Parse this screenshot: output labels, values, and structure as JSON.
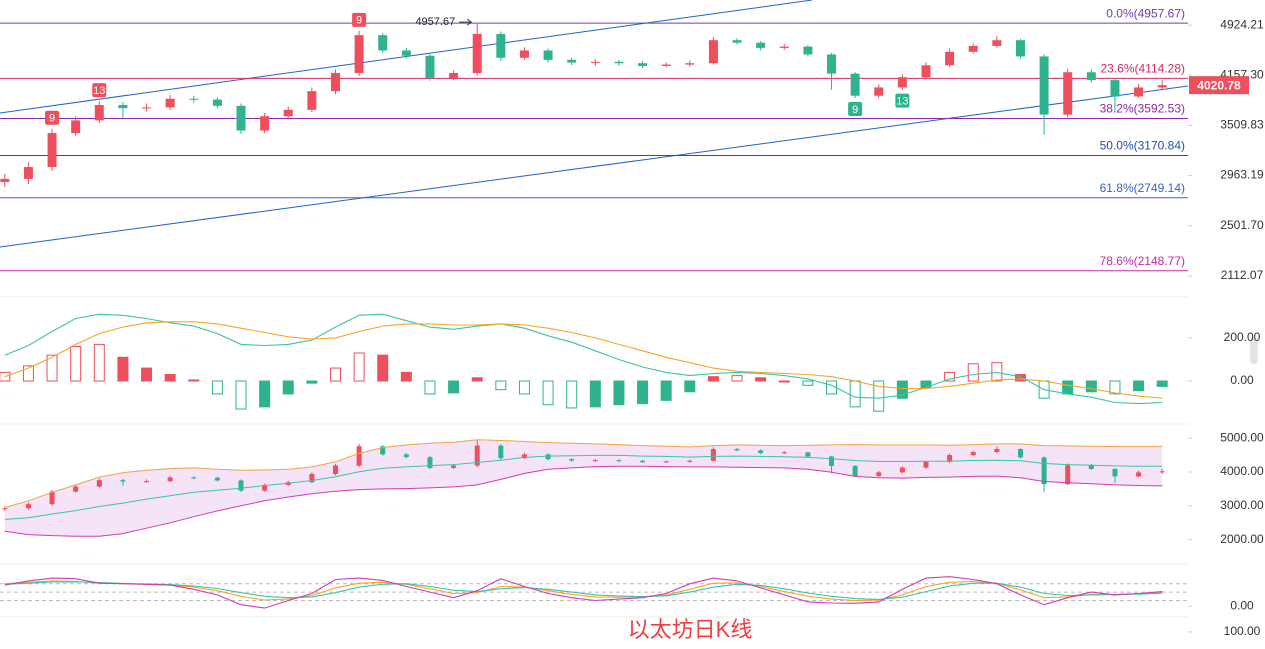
{
  "chart_data": [
    {
      "type": "candlestick",
      "log_scale": true,
      "ylim": [
        1980,
        5360
      ],
      "yticks": [
        4924.21,
        {
          "value": 4157.3,
          "label": "4157.30"
        },
        3509.83,
        2963.19,
        {
          "value": 2501.7,
          "label": "2501.70"
        },
        2112.07
      ],
      "up_color": "#ee4f5d",
      "down_color": "#2fb38e",
      "open": [
        2900,
        2930,
        3050,
        3420,
        3570,
        3760,
        3720,
        3730,
        3840,
        3830,
        3750,
        3450,
        3620,
        3700,
        3940,
        4190,
        4760,
        4520,
        4440,
        4120,
        4190,
        4780,
        4410,
        4520,
        4380,
        4340,
        4350,
        4330,
        4290,
        4310,
        4330,
        4680,
        4640,
        4560,
        4580,
        4460,
        4180,
        3880,
        3990,
        4130,
        4300,
        4500,
        4590,
        4680,
        4430,
        3640,
        4200,
        4090,
        3870,
        3990
      ],
      "high": [
        2980,
        3100,
        3470,
        3620,
        3810,
        3800,
        3780,
        3890,
        3880,
        3860,
        3780,
        3660,
        3740,
        3990,
        4240,
        4830,
        4790,
        4560,
        4470,
        4230,
        4957.67,
        4820,
        4570,
        4550,
        4410,
        4390,
        4380,
        4360,
        4340,
        4370,
        4730,
        4710,
        4670,
        4620,
        4600,
        4480,
        4200,
        4030,
        4170,
        4340,
        4550,
        4630,
        4750,
        4700,
        4460,
        4250,
        4240,
        4110,
        4040,
        4090
      ],
      "low": [
        2850,
        2880,
        3010,
        3390,
        3540,
        3600,
        3680,
        3700,
        3790,
        3720,
        3410,
        3420,
        3580,
        3670,
        3900,
        4150,
        4480,
        4400,
        4080,
        4090,
        4150,
        4360,
        4380,
        4340,
        4300,
        4290,
        4290,
        4260,
        4270,
        4280,
        4310,
        4610,
        4520,
        4530,
        4430,
        3960,
        3850,
        3850,
        3960,
        4100,
        4270,
        4470,
        4560,
        4400,
        3400,
        3610,
        4060,
        3680,
        3850,
        3950
      ],
      "close": [
        2930,
        3050,
        3420,
        3570,
        3760,
        3720,
        3730,
        3840,
        3830,
        3750,
        3450,
        3620,
        3700,
        3940,
        4190,
        4760,
        4520,
        4440,
        4120,
        4190,
        4780,
        4410,
        4520,
        4380,
        4340,
        4350,
        4330,
        4290,
        4310,
        4330,
        4680,
        4640,
        4560,
        4580,
        4460,
        4180,
        3880,
        3990,
        4130,
        4300,
        4500,
        4590,
        4680,
        4430,
        3640,
        4200,
        4090,
        3870,
        3990,
        4020.78
      ],
      "last_price": 4020.78,
      "fib_levels": [
        {
          "label": "0.0%(4957.67)",
          "value": 4957.67,
          "color": "#6a3fb5"
        },
        {
          "label": "23.6%(4114.28)",
          "value": 4114.28,
          "color": "#d62a64"
        },
        {
          "label": "38.2%(3592.53)",
          "value": 3592.53,
          "color": "#8e2aa8"
        },
        {
          "label": "50.0%(3170.84)",
          "value": 3170.84,
          "color": "#2451a6"
        },
        {
          "label": "61.8%(2749.14)",
          "value": 2749.14,
          "color": "#3a62c9"
        },
        {
          "label": "78.6%(2148.77)",
          "value": 2148.77,
          "color": "#c42aa6"
        }
      ],
      "td_markers": [
        "9",
        "13",
        "9",
        "9",
        "13"
      ]
    },
    {
      "type": "macd",
      "ylim": [
        -181,
        376
      ],
      "yticks": [
        {
          "value": 200,
          "label": "200.00"
        },
        {
          "value": 0,
          "label": "0.00"
        }
      ],
      "histogram": [
        40,
        70,
        120,
        160,
        170,
        110,
        60,
        30,
        5,
        -60,
        -130,
        -120,
        -60,
        -10,
        60,
        130,
        120,
        40,
        -60,
        -55,
        15,
        -40,
        -60,
        -110,
        -125,
        -120,
        -110,
        -105,
        -90,
        -50,
        20,
        25,
        15,
        0,
        -20,
        -60,
        -120,
        -140,
        -80,
        -30,
        40,
        80,
        85,
        30,
        -80,
        -60,
        -50,
        -60,
        -45,
        -25
      ],
      "series": [
        {
          "color": "#3cc4a8",
          "values": [
            120,
            165,
            230,
            290,
            310,
            305,
            290,
            270,
            255,
            220,
            170,
            165,
            170,
            190,
            250,
            305,
            310,
            280,
            250,
            240,
            255,
            265,
            245,
            210,
            180,
            140,
            100,
            65,
            40,
            25,
            35,
            40,
            35,
            25,
            10,
            -20,
            -75,
            -80,
            -65,
            -30,
            10,
            30,
            40,
            20,
            -40,
            -60,
            -75,
            -100,
            -105,
            -100
          ]
        },
        {
          "color": "#f5a623",
          "values": [
            20,
            60,
            110,
            170,
            220,
            250,
            270,
            275,
            275,
            265,
            245,
            225,
            205,
            195,
            200,
            230,
            255,
            265,
            265,
            260,
            260,
            265,
            260,
            245,
            225,
            200,
            170,
            140,
            110,
            85,
            60,
            45,
            40,
            35,
            30,
            20,
            0,
            -25,
            -35,
            -35,
            -25,
            -10,
            5,
            10,
            0,
            -20,
            -35,
            -55,
            -70,
            -80
          ]
        }
      ]
    },
    {
      "type": "bollinger",
      "ylim": [
        1400,
        5300
      ],
      "yticks": [
        {
          "value": 5000,
          "label": "5000.00"
        },
        {
          "value": 4000,
          "label": "4000.00"
        },
        {
          "value": 3000,
          "label": "3000.00"
        },
        {
          "value": 2000,
          "label": "2000.00"
        }
      ],
      "fill": "#f5e3f8",
      "series": [
        {
          "color": "#f5a04a",
          "values": [
            2950,
            3150,
            3400,
            3620,
            3850,
            3980,
            4050,
            4100,
            4120,
            4080,
            4050,
            4060,
            4080,
            4150,
            4300,
            4550,
            4720,
            4800,
            4850,
            4880,
            4950,
            4930,
            4900,
            4870,
            4850,
            4830,
            4810,
            4780,
            4760,
            4740,
            4780,
            4800,
            4790,
            4780,
            4790,
            4800,
            4810,
            4800,
            4800,
            4800,
            4790,
            4810,
            4830,
            4830,
            4780,
            4770,
            4760,
            4750,
            4750,
            4750
          ]
        },
        {
          "color": "#3cc4a8",
          "values": [
            2600,
            2650,
            2760,
            2860,
            2980,
            3080,
            3200,
            3300,
            3400,
            3460,
            3520,
            3600,
            3670,
            3750,
            3860,
            4010,
            4110,
            4150,
            4190,
            4220,
            4280,
            4350,
            4430,
            4470,
            4480,
            4490,
            4490,
            4470,
            4460,
            4440,
            4460,
            4470,
            4460,
            4450,
            4430,
            4390,
            4340,
            4310,
            4310,
            4320,
            4320,
            4340,
            4350,
            4330,
            4250,
            4220,
            4200,
            4180,
            4170,
            4170
          ]
        },
        {
          "color": "#d23bb5",
          "values": [
            2250,
            2150,
            2120,
            2100,
            2100,
            2180,
            2340,
            2500,
            2680,
            2850,
            3000,
            3150,
            3260,
            3360,
            3430,
            3480,
            3500,
            3510,
            3530,
            3560,
            3620,
            3780,
            3960,
            4080,
            4120,
            4160,
            4170,
            4170,
            4160,
            4150,
            4150,
            4140,
            4130,
            4120,
            4080,
            3990,
            3870,
            3830,
            3820,
            3840,
            3850,
            3870,
            3880,
            3830,
            3720,
            3680,
            3650,
            3620,
            3600,
            3590
          ]
        }
      ]
    },
    {
      "type": "kdj",
      "ylim": [
        -21,
        129
      ],
      "yticks": [
        {
          "value": 0,
          "label": "0.00"
        }
      ],
      "levels": [
        80,
        50,
        20
      ],
      "series": [
        {
          "color": "#f5a623",
          "values": [
            80,
            85,
            90,
            88,
            82,
            80,
            78,
            75,
            68,
            55,
            35,
            22,
            25,
            38,
            65,
            82,
            85,
            78,
            62,
            45,
            48,
            70,
            68,
            55,
            42,
            33,
            32,
            33,
            40,
            60,
            82,
            83,
            70,
            52,
            35,
            25,
            20,
            22,
            40,
            70,
            85,
            88,
            82,
            58,
            30,
            33,
            42,
            42,
            44,
            48
          ]
        },
        {
          "color": "#3cc4a8",
          "values": [
            78,
            82,
            86,
            87,
            84,
            81,
            79,
            77,
            72,
            63,
            48,
            35,
            30,
            33,
            48,
            68,
            78,
            80,
            70,
            57,
            52,
            62,
            66,
            60,
            50,
            40,
            36,
            34,
            37,
            50,
            68,
            78,
            74,
            62,
            47,
            35,
            27,
            24,
            32,
            52,
            72,
            82,
            82,
            68,
            45,
            38,
            40,
            41,
            43,
            46
          ]
        },
        {
          "color": "#d23bb5",
          "values": [
            75,
            90,
            100,
            98,
            82,
            80,
            78,
            75,
            60,
            40,
            5,
            -7,
            20,
            45,
            95,
            100,
            92,
            70,
            50,
            30,
            55,
            98,
            70,
            45,
            30,
            20,
            25,
            30,
            45,
            80,
            100,
            90,
            65,
            40,
            15,
            11,
            10,
            15,
            60,
            100,
            105,
            95,
            80,
            40,
            5,
            30,
            50,
            40,
            45,
            52
          ]
        }
      ]
    },
    {
      "type": "line",
      "ylim": [
        0,
        170
      ],
      "yticks": [
        {
          "value": 100,
          "label": "100.00"
        }
      ]
    }
  ],
  "watermark": "以太坊日K线"
}
